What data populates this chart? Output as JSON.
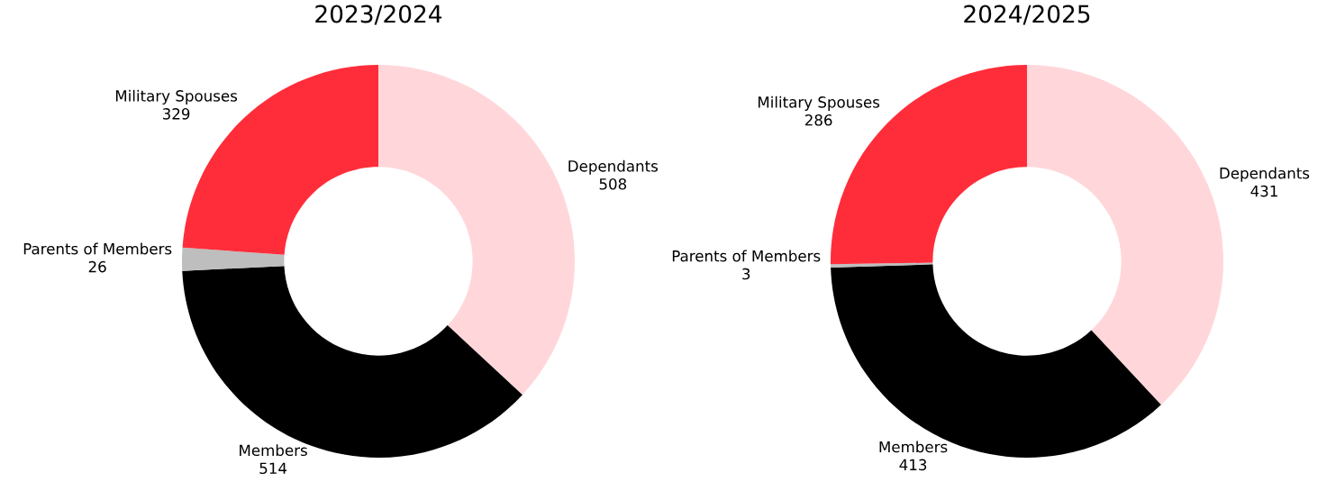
{
  "chart_data": [
    {
      "type": "donut",
      "title": "2023/2024",
      "categories": [
        "Dependants",
        "Members",
        "Parents of Members",
        "Military Spouses"
      ],
      "values": [
        508,
        514,
        26,
        329
      ],
      "colors": [
        "#ffd7da",
        "#000000",
        "#bebebe",
        "#ff2d3a"
      ],
      "data_labels": true
    },
    {
      "type": "donut",
      "title": "2024/2025",
      "categories": [
        "Dependants",
        "Members",
        "Parents of Members",
        "Military Spouses"
      ],
      "values": [
        431,
        413,
        3,
        286
      ],
      "colors": [
        "#ffd7da",
        "#000000",
        "#bebebe",
        "#ff2d3a"
      ],
      "data_labels": true
    }
  ]
}
